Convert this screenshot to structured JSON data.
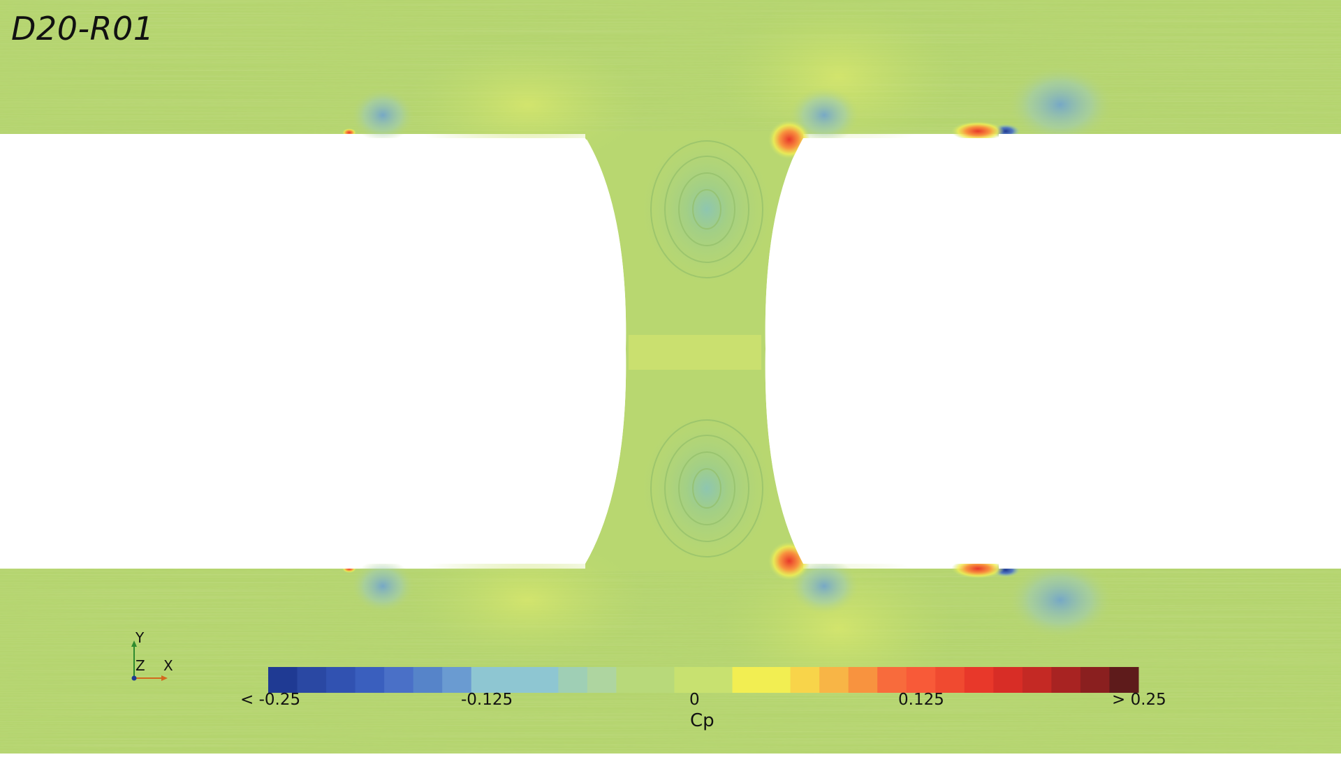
{
  "case_label": "D20-R01",
  "colorbar": {
    "title": "Cp",
    "ticks": [
      "< -0.25",
      "-0.125",
      "0",
      "0.125",
      "> 0.25"
    ],
    "range": [
      -0.25,
      0.25
    ],
    "colors": [
      "#1f3a93",
      "#2a48a3",
      "#3152b1",
      "#3a5fbe",
      "#4a70c7",
      "#5684c9",
      "#6a9bd1",
      "#8ec6d2",
      "#8ec6d2",
      "#8ec6d2",
      "#9fcfb5",
      "#aed5a0",
      "#b8d97a",
      "#b8d97a",
      "#c8e170",
      "#c8e170",
      "#f2ee52",
      "#f2ee52",
      "#f8d44a",
      "#f8b546",
      "#f8933f",
      "#f86b3c",
      "#f85a38",
      "#f04a30",
      "#e8382a",
      "#d82d26",
      "#c42924",
      "#a82322",
      "#8a1f1f",
      "#5e1b1b"
    ]
  },
  "axes": {
    "x": "X",
    "y": "Y",
    "z": "Z"
  }
}
